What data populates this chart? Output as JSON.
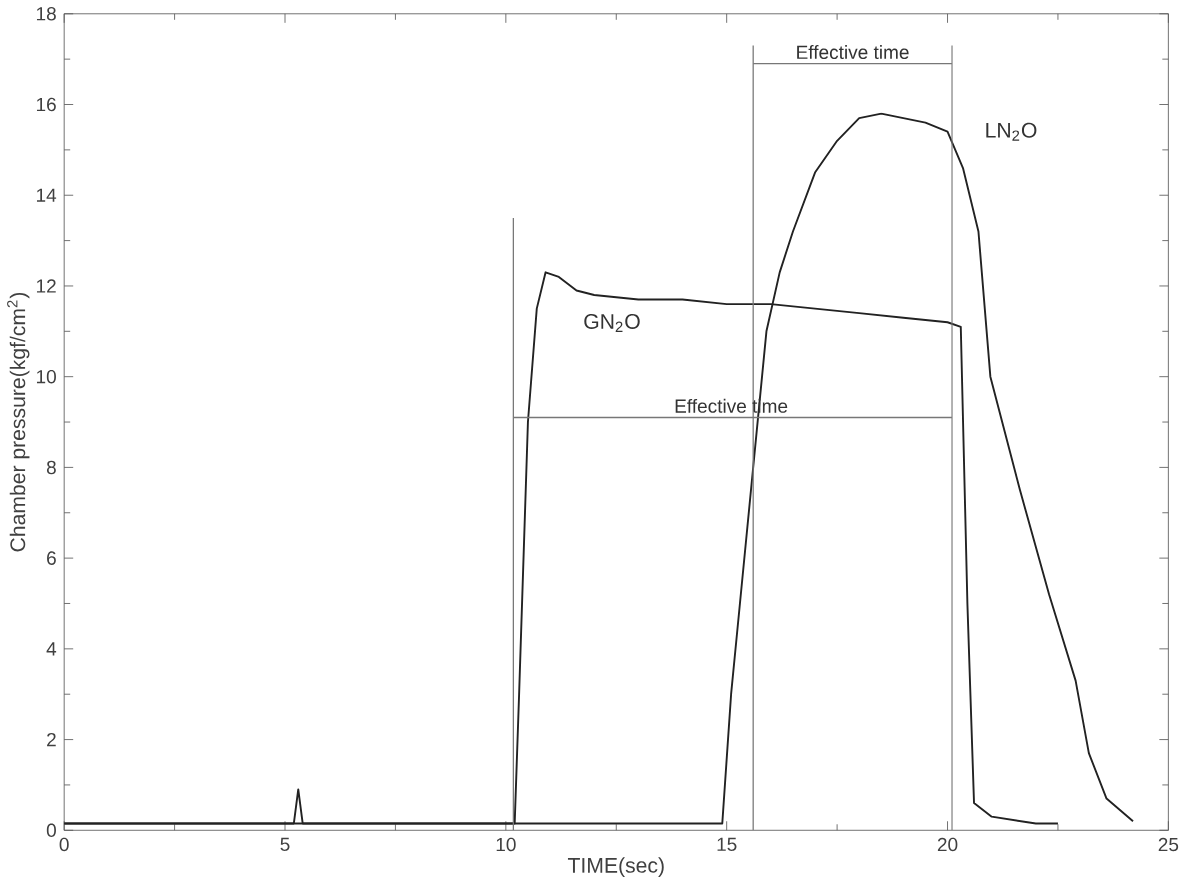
{
  "chart_data": {
    "type": "line",
    "xlabel": "TIME(sec)",
    "ylabel": "Chamber pressure(kgf/cm$^{2}$)",
    "xlim": [
      0,
      25
    ],
    "ylim": [
      0,
      18
    ],
    "xticks": [
      0,
      5,
      10,
      15,
      20,
      25
    ],
    "yticks": [
      0,
      2,
      4,
      6,
      8,
      10,
      12,
      14,
      16,
      18
    ],
    "grid": false,
    "marker": "none",
    "line_style": "solid",
    "series": [
      {
        "name": "GN$_{2}$O",
        "color": "#222222",
        "x": [
          0,
          5.2,
          5.3,
          5.4,
          10.2,
          10.3,
          10.5,
          10.7,
          10.9,
          11.2,
          11.6,
          12,
          13,
          14,
          15,
          16,
          17,
          18,
          19,
          20,
          20.3,
          20.45,
          20.6,
          21,
          22,
          22.5
        ],
        "values": [
          0.15,
          0.15,
          0.9,
          0.15,
          0.15,
          3,
          9,
          11.5,
          12.3,
          12.2,
          11.9,
          11.8,
          11.7,
          11.7,
          11.6,
          11.6,
          11.5,
          11.4,
          11.3,
          11.2,
          11.1,
          5,
          0.6,
          0.3,
          0.15,
          0.15
        ]
      },
      {
        "name": "LN$_{2}$O",
        "color": "#222222",
        "x": [
          0,
          14.9,
          15.1,
          15.3,
          15.6,
          15.9,
          16.2,
          16.5,
          17,
          17.5,
          18,
          18.5,
          19,
          19.5,
          20,
          20.35,
          20.7,
          20.97,
          21.64,
          22.3,
          22.9,
          23.2,
          23.6,
          24.2
        ],
        "values": [
          0.15,
          0.15,
          3,
          5,
          8,
          11,
          12.3,
          13.2,
          14.5,
          15.2,
          15.7,
          15.8,
          15.7,
          15.6,
          15.4,
          14.6,
          13.2,
          10,
          7.5,
          5.2,
          3.3,
          1.7,
          0.7,
          0.2
        ]
      },
      {
        "color": "#777777",
        "x": [
          10.17,
          10.17
        ],
        "values": [
          0,
          13.5
        ]
      },
      {
        "color": "#777777",
        "x": [
          15.6,
          15.6
        ],
        "values": [
          0,
          17.3
        ]
      },
      {
        "color": "#777777",
        "x": [
          20.1,
          20.1
        ],
        "values": [
          0,
          17.3
        ]
      },
      {
        "color": "#777777",
        "x": [
          10.17,
          20.1
        ],
        "values": [
          9.1,
          9.1
        ]
      },
      {
        "color": "#777777",
        "x": [
          15.6,
          20.1
        ],
        "values": [
          16.9,
          16.9
        ]
      }
    ],
    "annotations": [
      {
        "text": "Effective time",
        "x": 17.85,
        "y": 16.9
      },
      {
        "text": "Effective time",
        "x": 15.1,
        "y": 9.1
      }
    ]
  }
}
